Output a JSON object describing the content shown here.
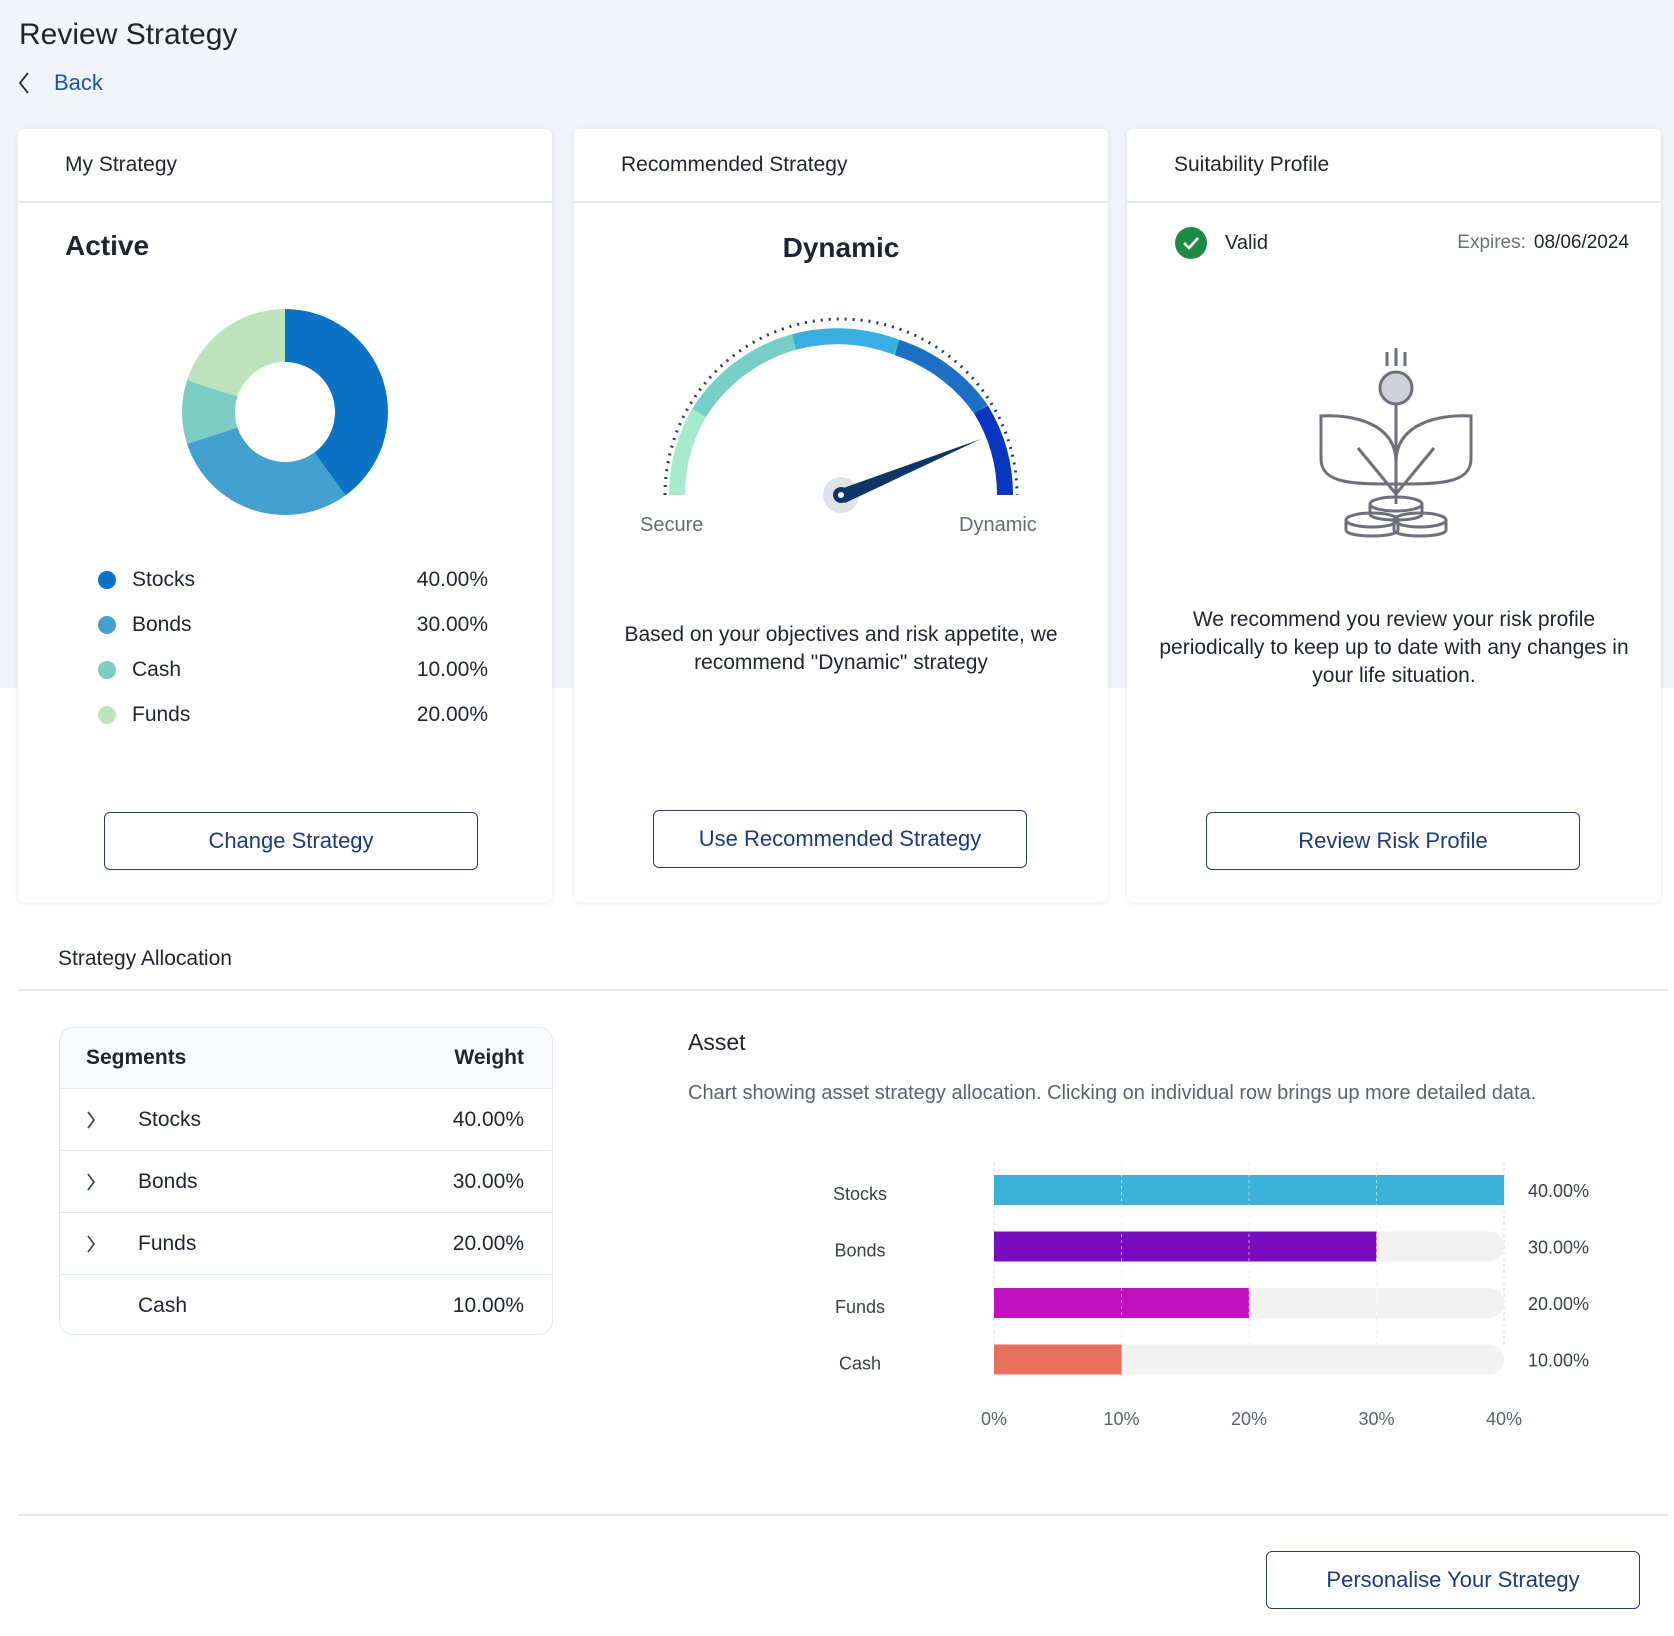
{
  "page": {
    "title": "Review Strategy",
    "back_label": "Back"
  },
  "my_strategy": {
    "header": "My Strategy",
    "label": "Active",
    "legend": [
      {
        "name": "Stocks",
        "value": "40.00%",
        "color": "#0b72c6"
      },
      {
        "name": "Bonds",
        "value": "30.00%",
        "color": "#43a0d0"
      },
      {
        "name": "Cash",
        "value": "10.00%",
        "color": "#7ccdc4"
      },
      {
        "name": "Funds",
        "value": "20.00%",
        "color": "#bde4bd"
      }
    ],
    "button": "Change Strategy"
  },
  "recommended": {
    "header": "Recommended Strategy",
    "label": "Dynamic",
    "gauge_min_label": "Secure",
    "gauge_max_label": "Dynamic",
    "description": "Based on your objectives and risk appetite, we recommend \"Dynamic\" strategy",
    "button": "Use Recommended Strategy"
  },
  "suitability": {
    "header": "Suitability Profile",
    "status": "Valid",
    "expires_label": "Expires:",
    "expires_value": "08/06/2024",
    "description": "We recommend you review your risk profile periodically to keep up to date with any changes in your life situation.",
    "button": "Review Risk Profile"
  },
  "allocation": {
    "header": "Strategy Allocation",
    "table": {
      "col_segments": "Segments",
      "col_weight": "Weight",
      "rows": [
        {
          "name": "Stocks",
          "weight": "40.00%",
          "expandable": true
        },
        {
          "name": "Bonds",
          "weight": "30.00%",
          "expandable": true
        },
        {
          "name": "Funds",
          "weight": "20.00%",
          "expandable": true
        },
        {
          "name": "Cash",
          "weight": "10.00%",
          "expandable": false
        }
      ]
    },
    "asset_title": "Asset",
    "asset_description": "Chart showing asset strategy allocation. Clicking on individual row brings up more detailed data."
  },
  "chart_data": [
    {
      "type": "pie",
      "title": "Active",
      "categories": [
        "Stocks",
        "Bonds",
        "Cash",
        "Funds"
      ],
      "values": [
        40,
        30,
        10,
        20
      ],
      "colors": [
        "#0b72c6",
        "#43a0d0",
        "#7ccdc4",
        "#bde4bd"
      ]
    },
    {
      "type": "bar",
      "orientation": "horizontal",
      "title": "Asset",
      "categories": [
        "Stocks",
        "Bonds",
        "Funds",
        "Cash"
      ],
      "values": [
        40,
        30,
        20,
        10
      ],
      "value_labels": [
        "40.00%",
        "30.00%",
        "20.00%",
        "10.00%"
      ],
      "colors": [
        "#3bb0d8",
        "#7a0bc0",
        "#c010c0",
        "#e8705e"
      ],
      "xlim": [
        0,
        40
      ],
      "ticks": [
        0,
        10,
        20,
        30,
        40
      ],
      "tick_labels": [
        "0%",
        "10%",
        "20%",
        "30%",
        "40%"
      ],
      "grid": true
    }
  ],
  "footer": {
    "button": "Personalise Your Strategy"
  }
}
